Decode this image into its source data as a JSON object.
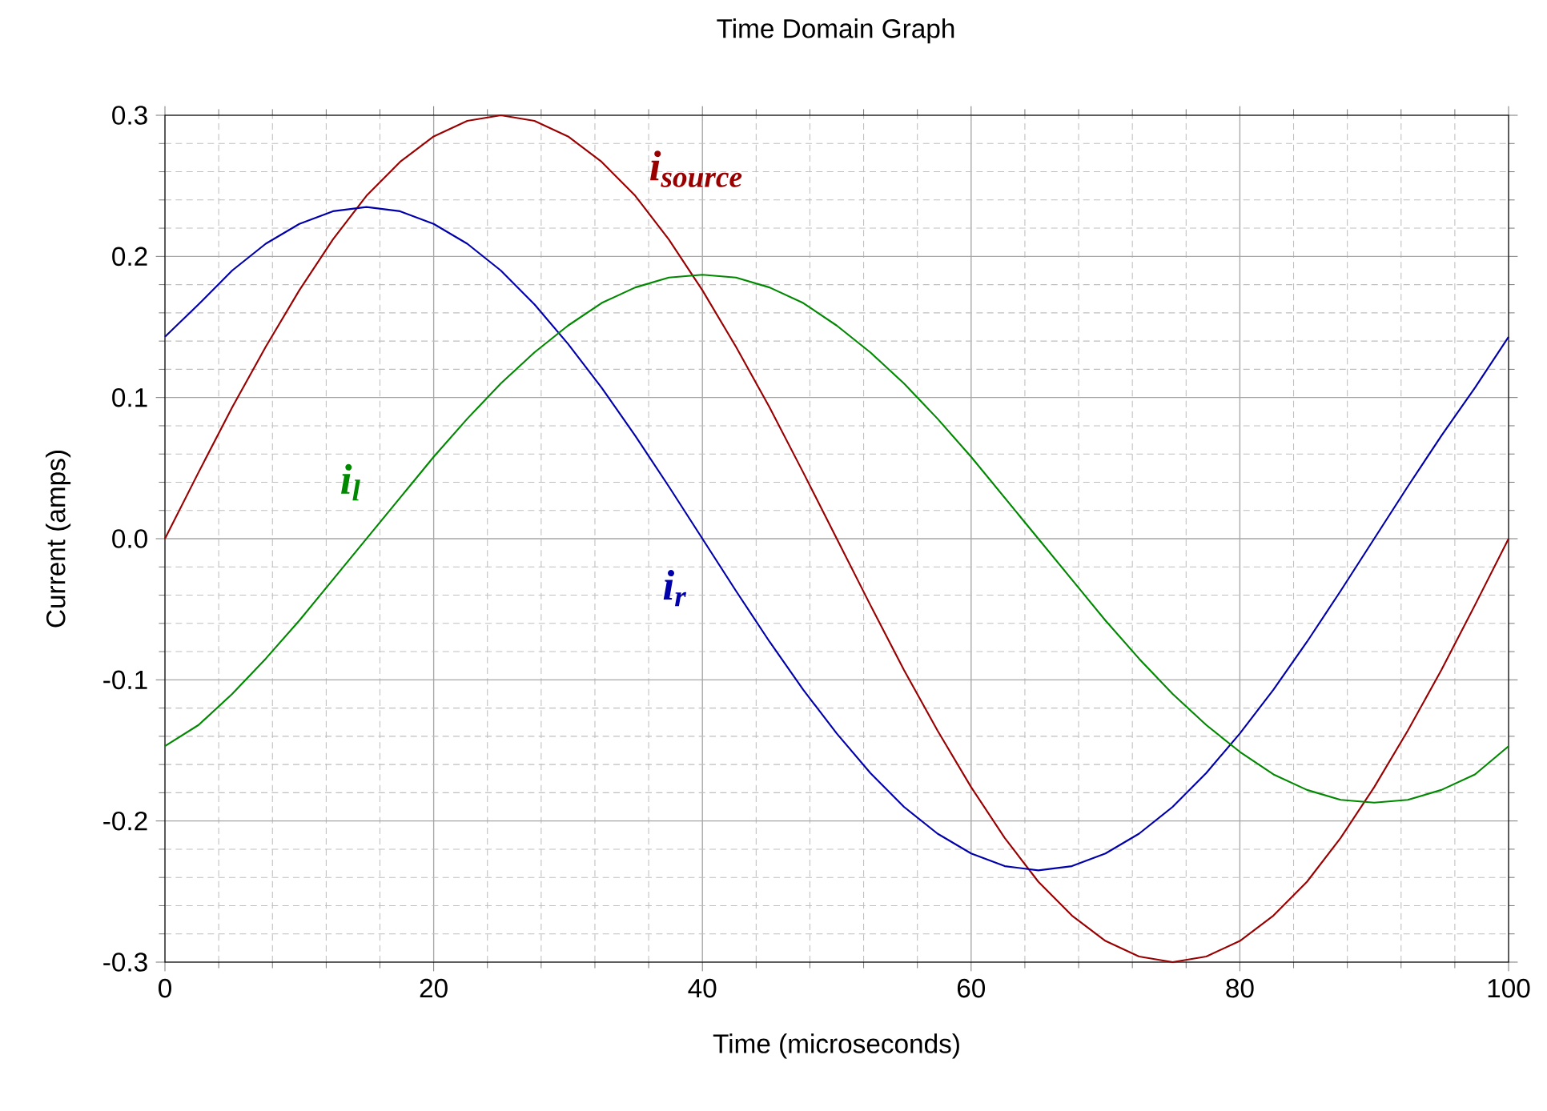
{
  "chart_data": {
    "type": "line",
    "title": "Time Domain Graph",
    "xlabel": "Time (microseconds)",
    "ylabel": "Current (amps)",
    "x": [
      0,
      2.5,
      5,
      7.5,
      10,
      12.5,
      15,
      17.5,
      20,
      22.5,
      25,
      27.5,
      30,
      32.5,
      35,
      37.5,
      40,
      42.5,
      45,
      47.5,
      50,
      52.5,
      55,
      57.5,
      60,
      62.5,
      65,
      67.5,
      70,
      72.5,
      75,
      77.5,
      80,
      82.5,
      85,
      87.5,
      90,
      92.5,
      95,
      97.5,
      100
    ],
    "series": [
      {
        "name": "i$_{source}$",
        "color": "#990000",
        "values": [
          0,
          0.047,
          0.093,
          0.136,
          0.176,
          0.212,
          0.243,
          0.267,
          0.285,
          0.296,
          0.3,
          0.296,
          0.285,
          0.267,
          0.243,
          0.212,
          0.176,
          0.136,
          0.093,
          0.047,
          0,
          -0.047,
          -0.093,
          -0.136,
          -0.176,
          -0.212,
          -0.243,
          -0.267,
          -0.285,
          -0.296,
          -0.3,
          -0.296,
          -0.285,
          -0.267,
          -0.243,
          -0.212,
          -0.176,
          -0.136,
          -0.093,
          -0.047,
          0
        ]
      },
      {
        "name": "i$_{r}$",
        "color": "#0000aa",
        "values": [
          0.143,
          0.166,
          0.19,
          0.209,
          0.223,
          0.232,
          0.235,
          0.232,
          0.223,
          0.209,
          0.19,
          0.166,
          0.138,
          0.107,
          0.073,
          0.037,
          0,
          -0.037,
          -0.073,
          -0.107,
          -0.138,
          -0.166,
          -0.19,
          -0.209,
          -0.223,
          -0.232,
          -0.235,
          -0.232,
          -0.223,
          -0.209,
          -0.19,
          -0.166,
          -0.138,
          -0.107,
          -0.073,
          -0.037,
          0,
          0.037,
          0.073,
          0.107,
          0.143
        ]
      },
      {
        "name": "i$_{l}$",
        "color": "#008800",
        "values": [
          -0.147,
          -0.132,
          -0.11,
          -0.085,
          -0.058,
          -0.029,
          0,
          0.029,
          0.058,
          0.085,
          0.11,
          0.132,
          0.151,
          0.167,
          0.178,
          0.185,
          0.187,
          0.185,
          0.178,
          0.167,
          0.151,
          0.132,
          0.11,
          0.085,
          0.058,
          0.029,
          0,
          -0.029,
          -0.058,
          -0.085,
          -0.11,
          -0.132,
          -0.151,
          -0.167,
          -0.178,
          -0.185,
          -0.187,
          -0.185,
          -0.178,
          -0.167,
          -0.147
        ]
      }
    ],
    "xlim": [
      0,
      100
    ],
    "xticks": [
      0,
      20,
      40,
      60,
      80,
      100
    ],
    "ylim": [
      -0.3,
      0.3
    ],
    "yticks": [
      -0.3,
      -0.2,
      -0.1,
      {
        "value": 0,
        "label": "0.0"
      },
      0.1,
      0.2,
      0.3
    ],
    "grid": true,
    "marker": "none",
    "line_style": "solid"
  }
}
